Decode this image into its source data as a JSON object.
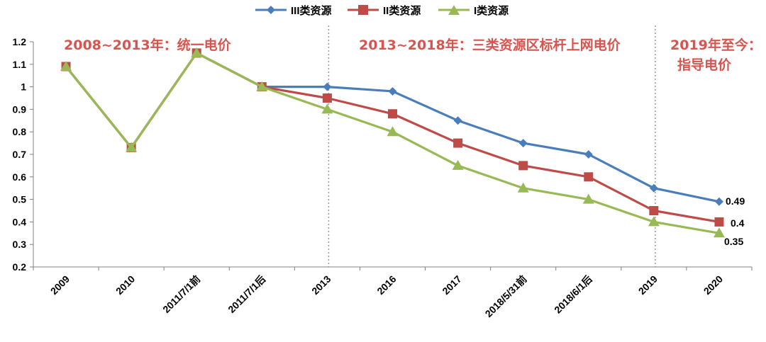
{
  "chart_data": {
    "type": "line",
    "categories": [
      "2009",
      "2010",
      "2011/7/1前",
      "2011/7/1后",
      "2013",
      "2016",
      "2017",
      "2018/5/31前",
      "2018/6/1后",
      "2019",
      "2020"
    ],
    "series": [
      {
        "name": "III类资源",
        "color": "#4a7ebb",
        "marker": "diamond",
        "values": [
          1.09,
          0.73,
          1.15,
          1.0,
          1.0,
          0.98,
          0.85,
          0.75,
          0.7,
          0.55,
          0.49
        ]
      },
      {
        "name": "II类资源",
        "color": "#be4b48",
        "marker": "square",
        "values": [
          1.09,
          0.73,
          1.15,
          1.0,
          0.95,
          0.88,
          0.75,
          0.65,
          0.6,
          0.45,
          0.4
        ]
      },
      {
        "name": "I类资源",
        "color": "#98b954",
        "marker": "triangle",
        "values": [
          1.09,
          0.73,
          1.15,
          1.0,
          0.9,
          0.8,
          0.65,
          0.55,
          0.5,
          0.4,
          0.35
        ]
      }
    ],
    "ylim": [
      0.2,
      1.2
    ],
    "yticks": [
      "0.2",
      "0.3",
      "0.4",
      "0.5",
      "0.6",
      "0.7",
      "0.8",
      "0.9",
      "1",
      "1.1",
      "1.2"
    ],
    "grid": false,
    "legend": "top",
    "end_labels": [
      "0.49",
      "0.4",
      "0.35"
    ],
    "period_dividers_after": [
      "2013",
      "2019"
    ],
    "annotations": {
      "color": "#d9544e",
      "period1": "2008~2013年：统一电价",
      "period2": "2013~2018年：三类资源区标杆上网电价",
      "period3_line1": "2019年至今：",
      "period3_line2": "指导电价"
    }
  }
}
